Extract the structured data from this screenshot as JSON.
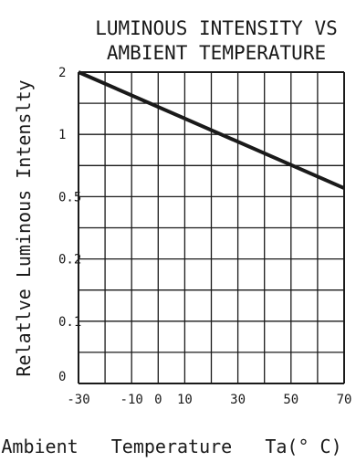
{
  "chart_data": {
    "type": "line",
    "title_line1": "LUMINOUS INTENSITY VS",
    "title_line2": "AMBIENT TEMPERATURE",
    "xlabel": "Ambient   Temperature   Ta(° C)",
    "ylabel": "Relatlve Luminous Intenslty",
    "xlim": [
      -30,
      70
    ],
    "x_tick_labels": [
      "-30",
      "-10",
      "0",
      "10",
      "30",
      "50",
      "70"
    ],
    "y_tick_labels": [
      "2",
      "1",
      "0.5",
      "0.2",
      "0.1",
      "0"
    ],
    "grid": true,
    "series": [
      {
        "x": [
          -30,
          70
        ],
        "y": [
          2,
          0.55
        ]
      }
    ]
  }
}
